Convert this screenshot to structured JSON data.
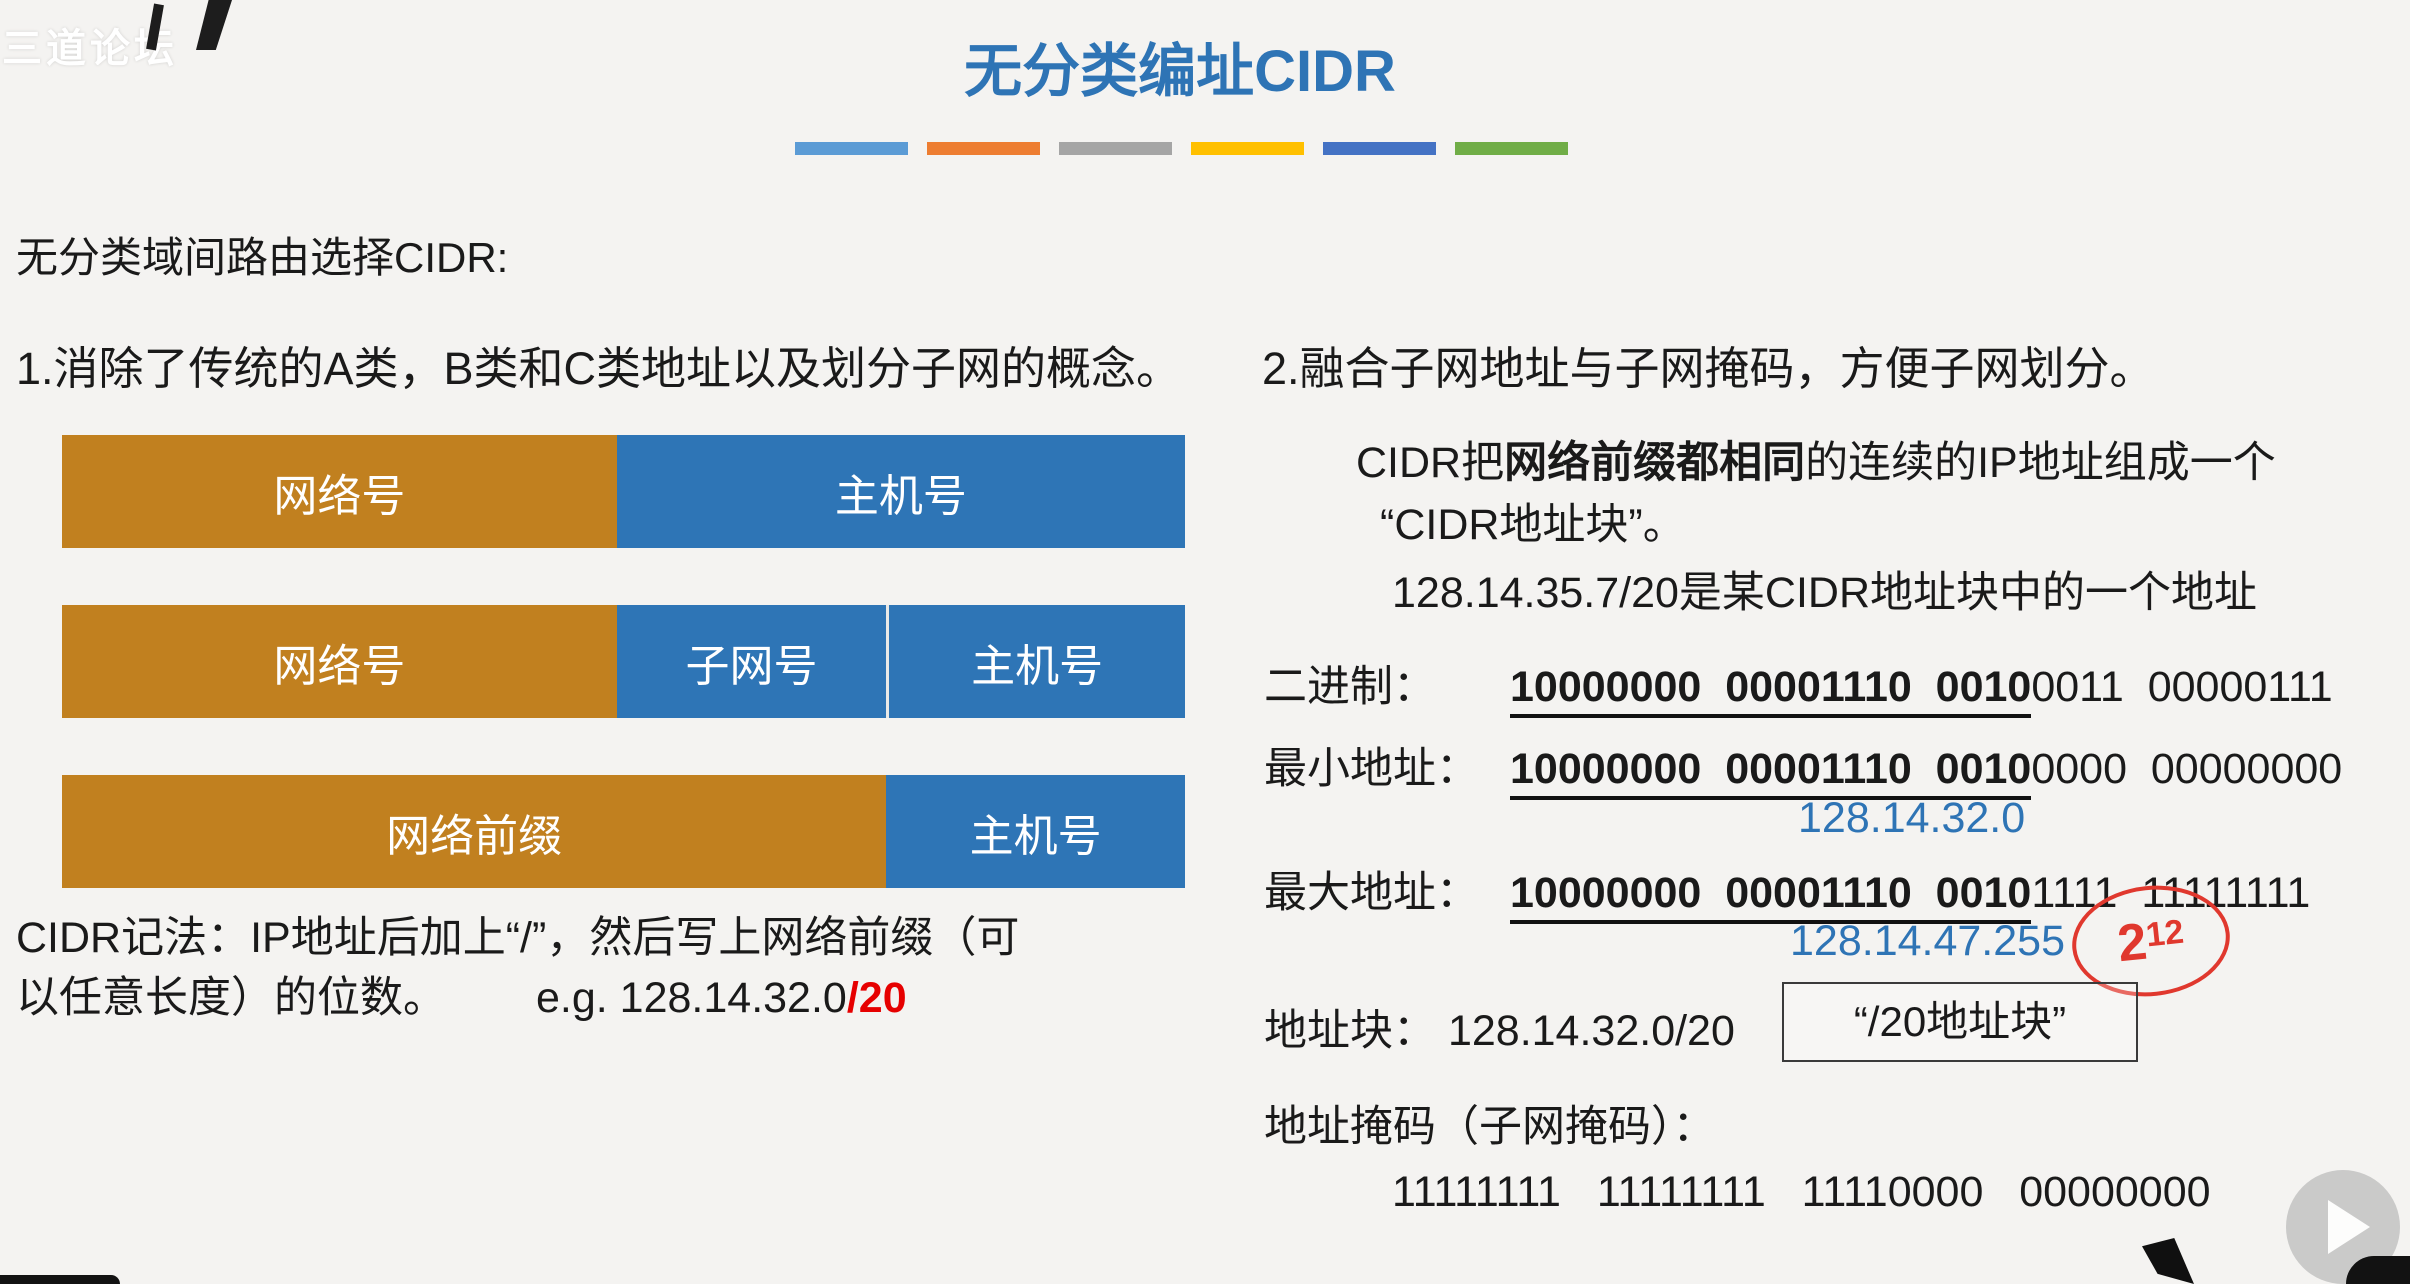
{
  "watermark": {
    "text": "三道论坛"
  },
  "header": {
    "title": "无分类编址CIDR",
    "dash_colors": [
      "#5B9BD5",
      "#ED7D31",
      "#A5A5A5",
      "#FFC000",
      "#4472C4",
      "#70AD47"
    ]
  },
  "left": {
    "heading": "无分类域间路由选择CIDR:",
    "point": "1.消除了传统的A类，B类和C类地址以及划分子网的概念。",
    "bars": [
      {
        "segments": [
          {
            "label": "网络号",
            "type": "network",
            "width_pct": 49.4
          },
          {
            "label": "主机号",
            "type": "host",
            "width_pct": 50.6
          }
        ]
      },
      {
        "segments": [
          {
            "label": "网络号",
            "type": "network",
            "width_pct": 49.4
          },
          {
            "label": "子网号",
            "type": "host",
            "width_pct": 24.0
          },
          {
            "label": "主机号",
            "type": "host",
            "width_pct": 26.6
          }
        ]
      },
      {
        "segments": [
          {
            "label": "网络前缀",
            "type": "network",
            "width_pct": 73.4
          },
          {
            "label": "主机号",
            "type": "host",
            "width_pct": 26.6
          }
        ]
      }
    ],
    "notation_line1": "CIDR记法：IP地址后加上“/”，然后写上网络前缀（可",
    "notation_line2": "以任意长度）的位数。",
    "example_label": "e.g. 128.14.32.0",
    "example_suffix": "/20"
  },
  "right": {
    "point": "2.融合子网地址与子网掩码，方便子网划分。",
    "para_pre": "CIDR把",
    "para_bold": "网络前缀都相同",
    "para_post": "的连续的IP地址组成一个",
    "para_line2": "“CIDR地址块”。",
    "example_line": "128.14.35.7/20是某CIDR地址块中的一个地址",
    "binary_rows": [
      {
        "label": "二进制：",
        "prefix": "10000000  00001110  0010",
        "rest": "0011  00000111",
        "value": ""
      },
      {
        "label": "最小地址：",
        "prefix": "10000000  00001110  0010",
        "rest": "0000  00000000",
        "value": "128.14.32.0"
      },
      {
        "label": "最大地址：",
        "prefix": "10000000  00001110  0010",
        "rest": "1111  11111111",
        "value": "128.14.47.255"
      }
    ],
    "annotation": {
      "base": "2",
      "exponent": "12"
    },
    "block_line": "地址块： 128.14.32.0/20",
    "block_box": "“/20地址块”",
    "mask_label": "地址掩码（子网掩码）：",
    "mask_value": "11111111   11111111   11110000   00000000"
  },
  "player": {
    "play_icon": "play-triangle"
  },
  "colors": {
    "title_blue": "#2E74B5",
    "network_orange": "#C1801F",
    "host_blue": "#2E75B6",
    "accent_red": "#E60000",
    "ip_blue": "#2E74B5",
    "annotation_red": "#E0382E"
  }
}
